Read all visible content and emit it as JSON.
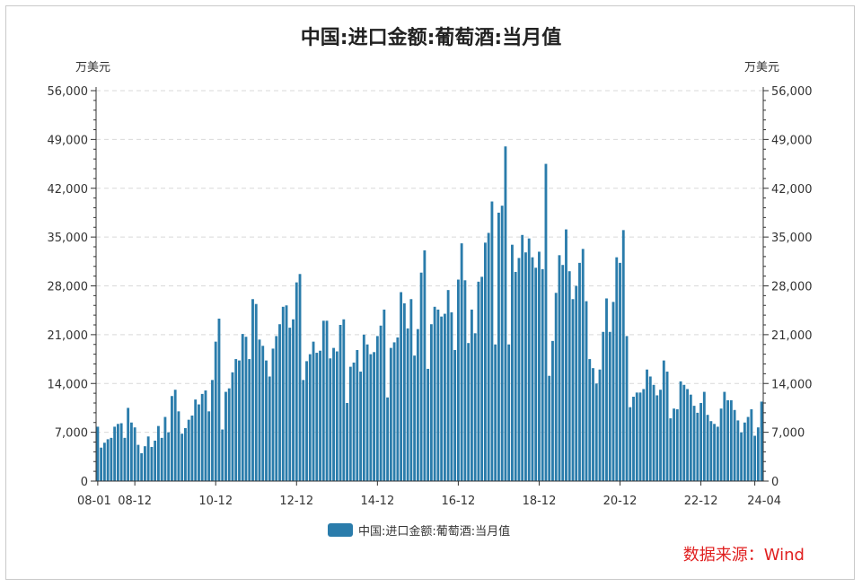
{
  "chart_data": {
    "type": "bar",
    "title": "中国:进口金额:葡萄酒:当月值",
    "unit_left": "万美元",
    "unit_right": "万美元",
    "ylim": [
      0,
      56000
    ],
    "yticks": [
      "0",
      "7,000",
      "14,000",
      "21,000",
      "28,000",
      "35,000",
      "42,000",
      "49,000",
      "56,000"
    ],
    "xtick_labels": [
      "08-01",
      "08-12",
      "10-12",
      "12-12",
      "14-12",
      "16-12",
      "18-12",
      "20-12",
      "22-12",
      "24-04"
    ],
    "grid": true,
    "legend_position": "bottom",
    "color": "#2a7cab",
    "series": [
      {
        "name": "中国:进口金额:葡萄酒:当月值",
        "values": [
          7800,
          4800,
          5500,
          6000,
          6200,
          7800,
          8200,
          8300,
          6200,
          10500,
          8400,
          7700,
          5200,
          4000,
          5000,
          6400,
          4900,
          5800,
          7900,
          6200,
          9200,
          7000,
          12200,
          13100,
          10000,
          6800,
          7600,
          8800,
          9400,
          11700,
          11000,
          12500,
          13000,
          10000,
          14500,
          20000,
          23300,
          7400,
          12800,
          13300,
          15600,
          17500,
          17300,
          21100,
          20700,
          17500,
          26100,
          25400,
          20300,
          19400,
          17300,
          15000,
          19000,
          20800,
          22500,
          25000,
          25200,
          22000,
          23200,
          28500,
          29700,
          14500,
          17200,
          18200,
          20000,
          18400,
          18700,
          23000,
          23000,
          17600,
          19100,
          18600,
          22400,
          23200,
          11200,
          16400,
          17000,
          18800,
          15700,
          21000,
          19600,
          18200,
          18500,
          20800,
          22300,
          24600,
          12000,
          19100,
          19900,
          20600,
          27100,
          25500,
          21900,
          26100,
          18000,
          21800,
          29900,
          33100,
          16100,
          22500,
          25000,
          24600,
          23600,
          24000,
          27400,
          24200,
          18800,
          28900,
          34100,
          28800,
          19800,
          24600,
          21200,
          28600,
          29300,
          34200,
          35600,
          40100,
          19600,
          38500,
          39500,
          48000,
          19600,
          33900,
          30000,
          32000,
          35300,
          32800,
          34800,
          32100,
          30600,
          32900,
          30400,
          45500,
          15100,
          20100,
          27000,
          32400,
          31000,
          36100,
          30100,
          26100,
          28000,
          31300,
          33300,
          25800,
          17500,
          16200,
          14000,
          16000,
          21400,
          26200,
          21400,
          25700,
          32100,
          31300,
          36000,
          20800,
          10600,
          12100,
          12700,
          12700,
          13200,
          16000,
          15000,
          13800,
          12300,
          13100,
          17300,
          15700,
          9000,
          10400,
          10300,
          14300,
          13800,
          13200,
          12400,
          10800,
          9800,
          11200,
          12800,
          9500,
          8600,
          8200,
          7800,
          10400,
          12800,
          11600,
          11600,
          10200,
          8700,
          7000,
          8400,
          9200,
          10300,
          6500,
          7700,
          11400
        ]
      }
    ]
  },
  "legend": {
    "label": "中国:进口金额:葡萄酒:当月值"
  },
  "source": {
    "text": "数据来源：Wind"
  }
}
